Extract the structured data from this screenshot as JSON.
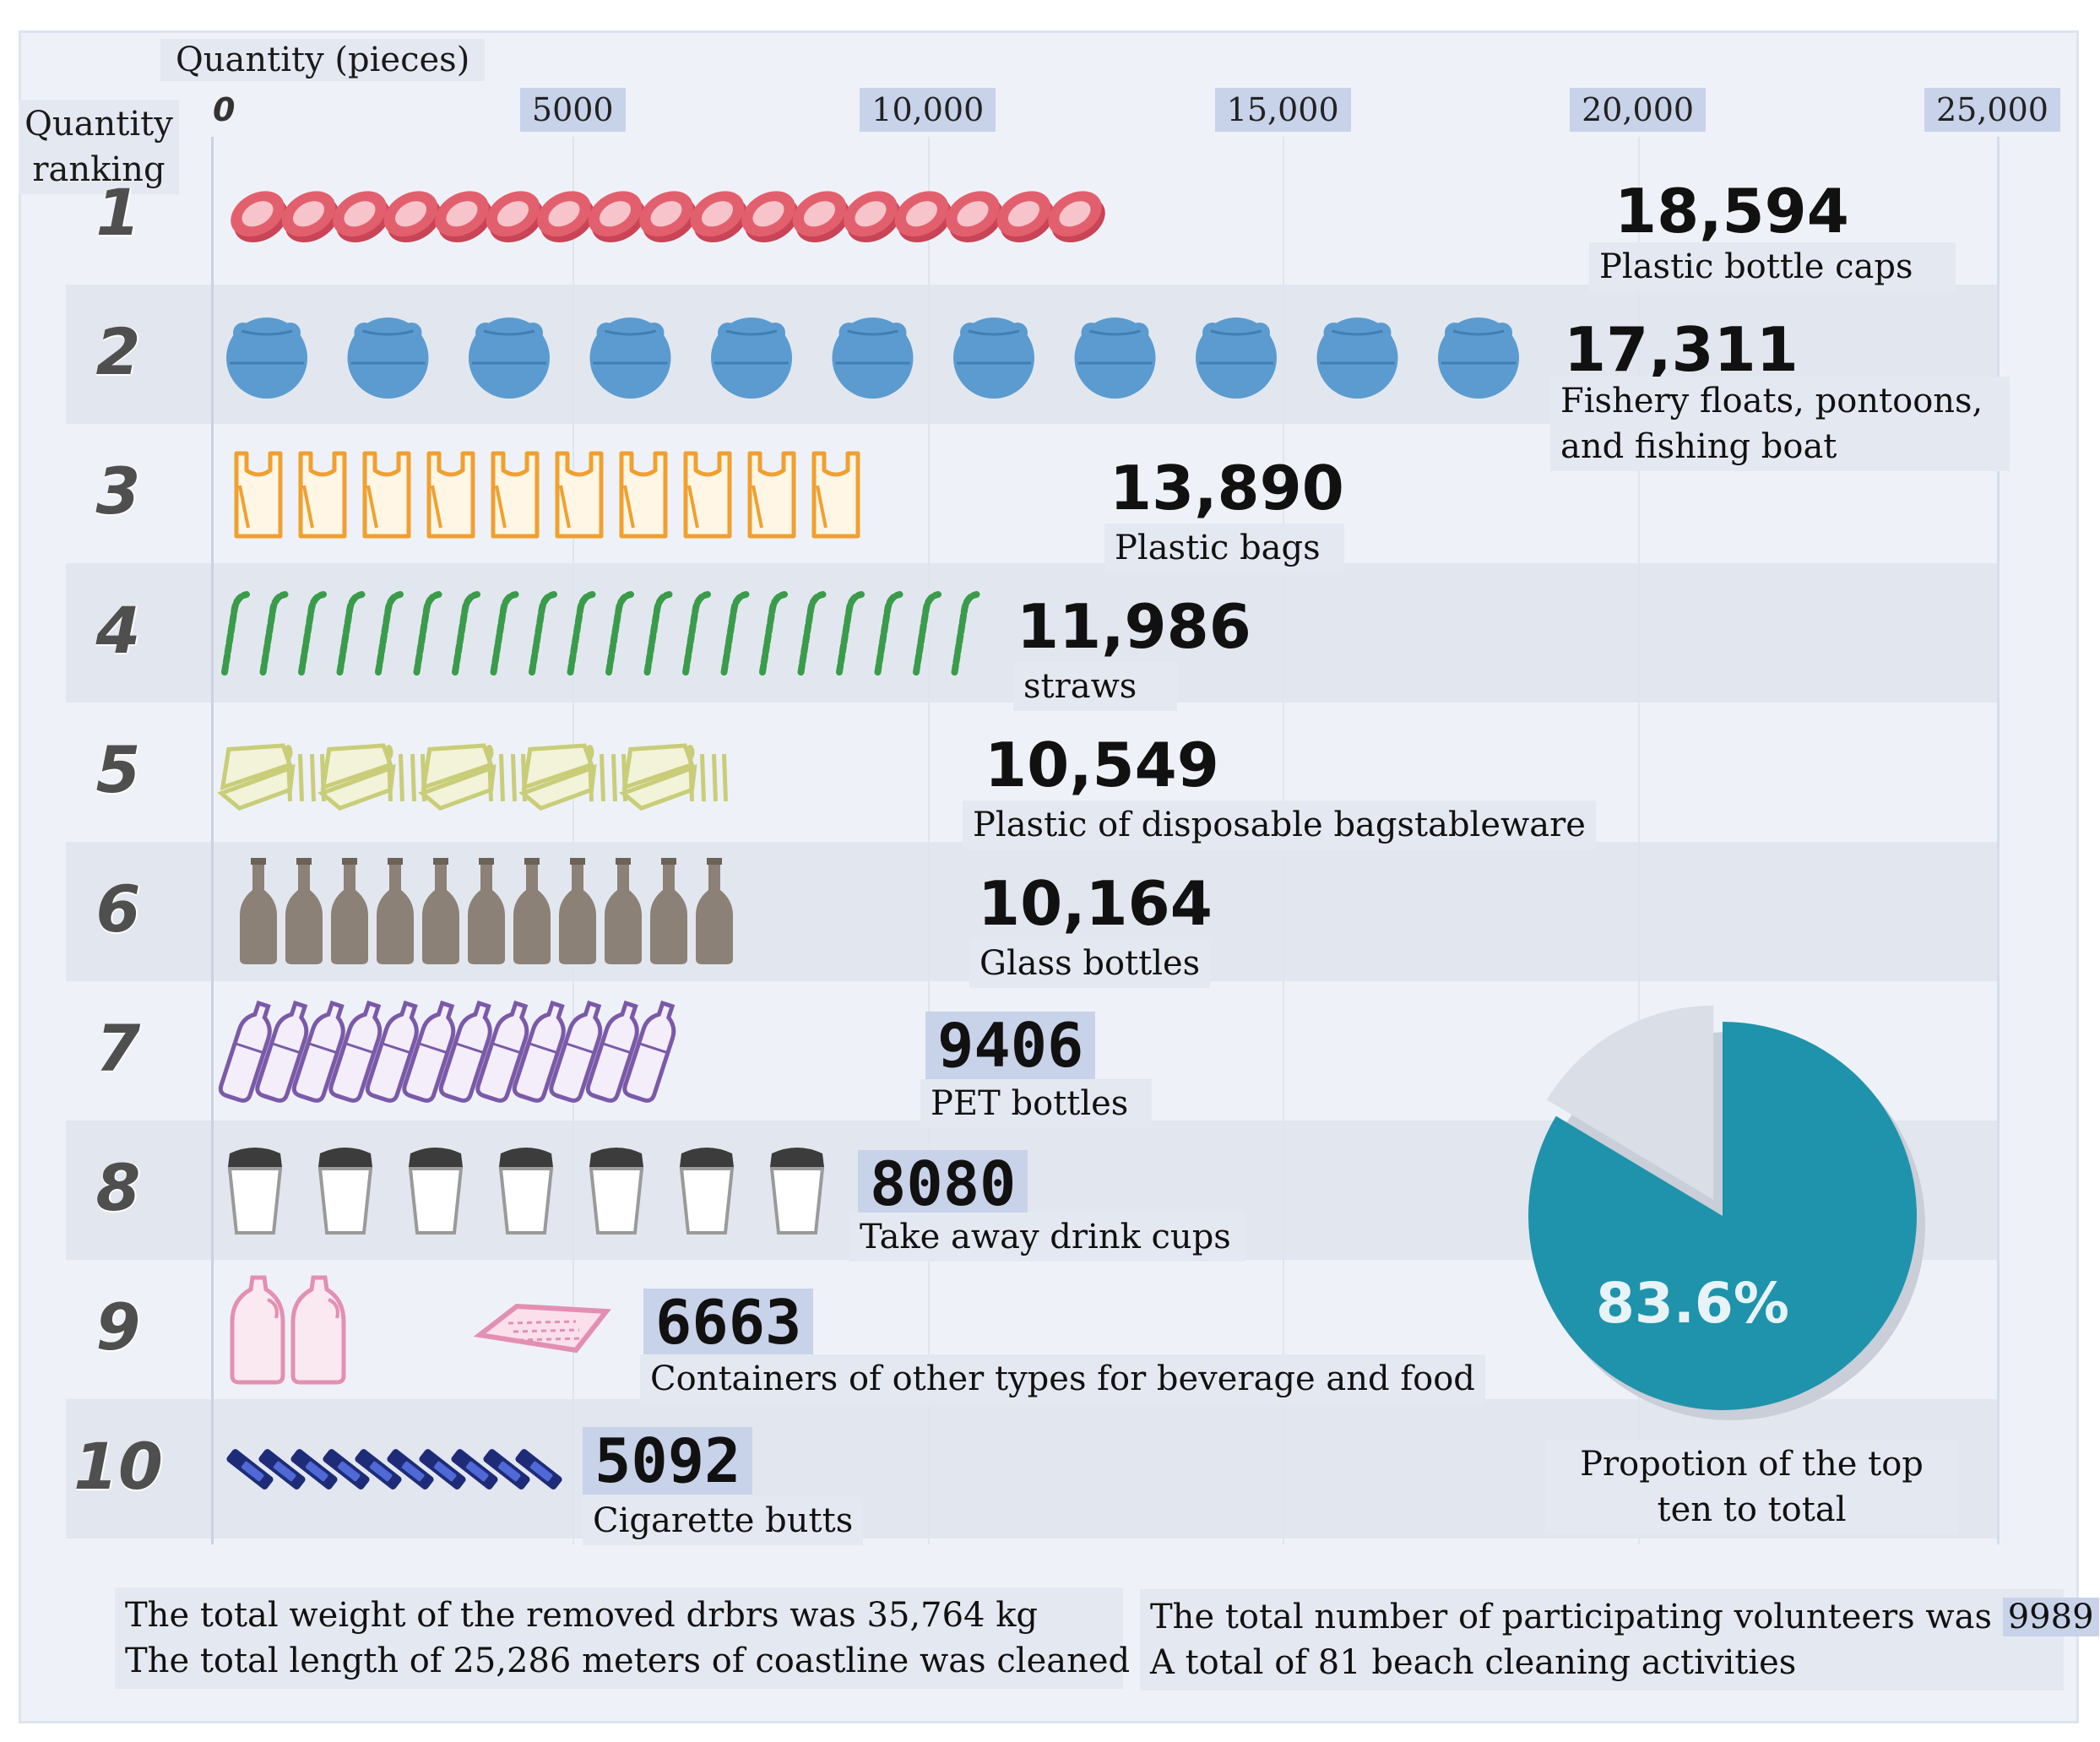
{
  "axis": {
    "title": "Quantity (pieces)",
    "ranking_title": "Quantity ranking",
    "ticks": [
      "0",
      "5000",
      "10,000",
      "15,000",
      "20,000",
      "25,000"
    ]
  },
  "chart_data": {
    "type": "bar",
    "title": "",
    "xlabel": "Quantity (pieces)",
    "ylabel": "Quantity ranking",
    "xlim": [
      0,
      25000
    ],
    "categories": [
      "Plastic bottle caps",
      "Fishery floats, pontoons, and fishing boat",
      "Plastic bags",
      "straws",
      "Plastic of disposable bagstableware",
      "Glass bottles",
      "PET bottles",
      "Take away drink cups",
      "Containers of other types for beverage and food",
      "Cigarette butts"
    ],
    "ranks": [
      "1",
      "2",
      "3",
      "4",
      "5",
      "6",
      "7",
      "8",
      "9",
      "10"
    ],
    "values": [
      18594,
      17311,
      13890,
      11986,
      10549,
      10164,
      9406,
      8080,
      6663,
      5092
    ],
    "value_labels": [
      "18,594",
      "17,311",
      "13,890",
      "11,986",
      "10,549",
      "10,164",
      "9406",
      "8080",
      "6663",
      "5092"
    ],
    "item_lines": [
      [
        "Plastic bottle caps"
      ],
      [
        "Fishery floats, pontoons,",
        "and fishing boat"
      ],
      [
        "Plastic bags"
      ],
      [
        "straws"
      ],
      [
        "Plastic of disposable bagstableware"
      ],
      [
        "Glass bottles"
      ],
      [
        "PET bottles"
      ],
      [
        "Take away drink cups"
      ],
      [
        "Containers of other types for beverage and food"
      ],
      [
        "Cigarette butts"
      ]
    ],
    "icons": [
      "bottle-cap-icon",
      "fishing-float-icon",
      "plastic-bag-icon",
      "straw-icon",
      "tableware-icon",
      "glass-bottle-icon",
      "pet-bottle-icon",
      "drink-cup-icon",
      "food-container-icon",
      "cigarette-butt-icon"
    ],
    "icon_colors": [
      "#e2606e",
      "#5b9bcf",
      "#f0a030",
      "#3a9c4a",
      "#c9cd78",
      "#8b8176",
      "#7a5aa8",
      "#3c3c3c",
      "#e38fb3",
      "#1e2c78"
    ],
    "pie": {
      "label": "83.6%",
      "value": 83.6,
      "caption_lines": [
        "Propotion of the top",
        "ten to total"
      ],
      "color": "#1f93ab",
      "rest_color": "#d9dee7"
    }
  },
  "footer": {
    "left": {
      "line1": "The  total weight of the removed drbrs was 35,764 kg",
      "line2": "The  total length of 25,286 meters of coastline was cleaned"
    },
    "right": {
      "line1_text": "The  total number of participating volunteers was ",
      "line1_num": "9989",
      "line2": "A total of 81 beach cleaning activities"
    }
  }
}
